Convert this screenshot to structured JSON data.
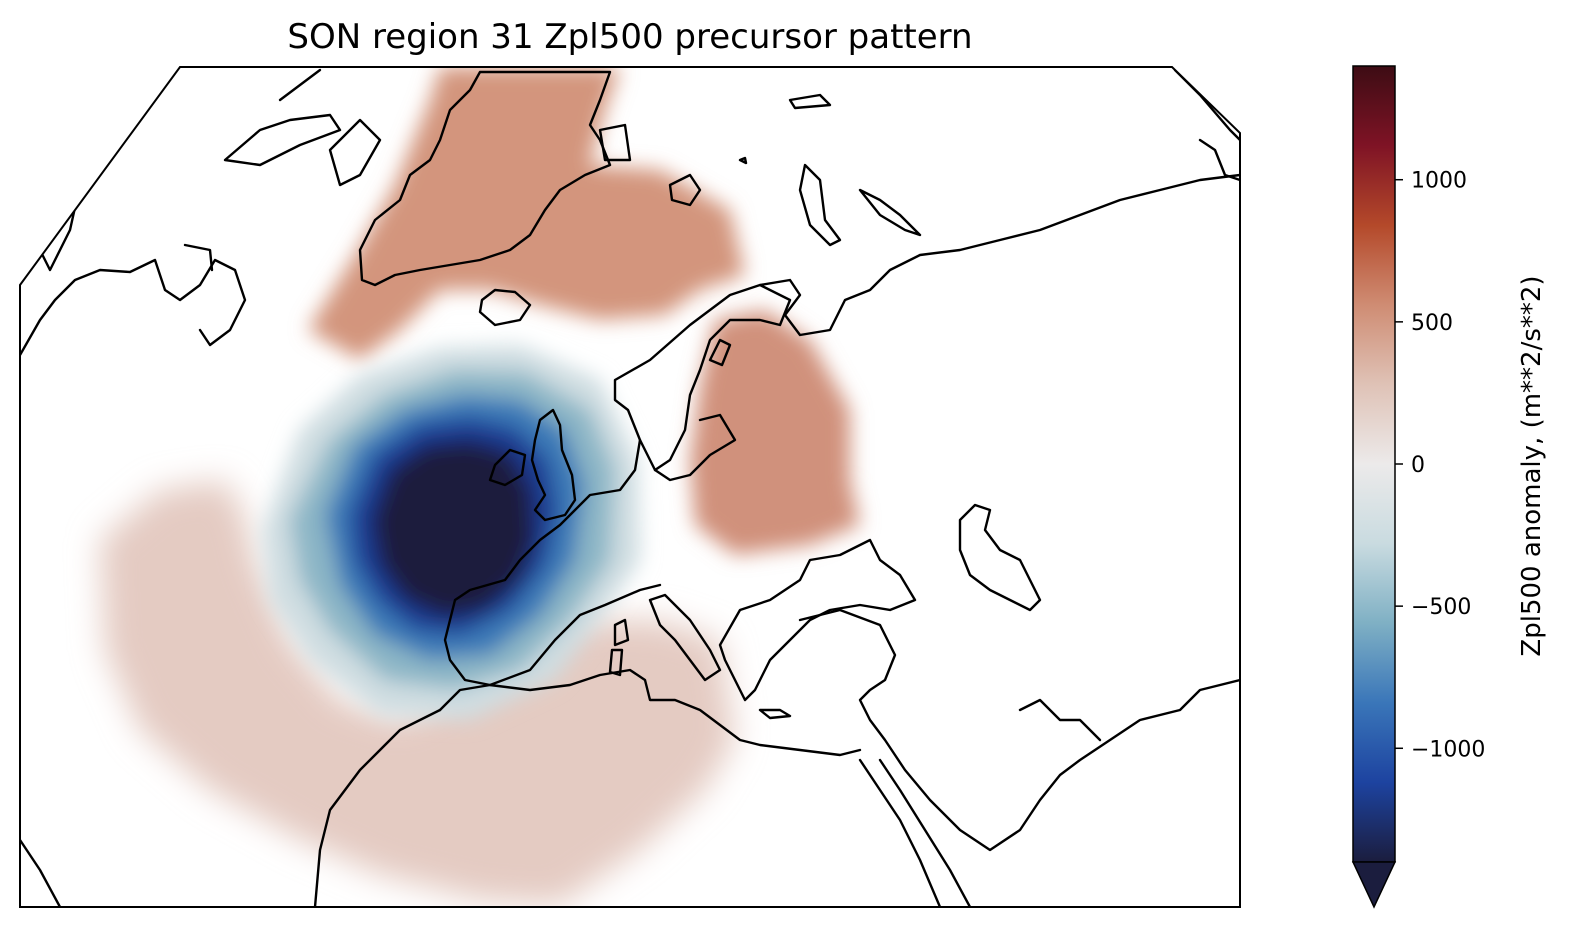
{
  "title": "SON region 31 Zpl500 precursor pattern",
  "colorbar": {
    "label": "Zpl500 anomaly, (m**2/s**2)",
    "ticks": [
      "1000",
      "500",
      "0",
      "−500",
      "−1000"
    ],
    "tick_values": [
      1000,
      500,
      0,
      -500,
      -1000
    ],
    "range": [
      -1400,
      1400
    ],
    "extend": "min",
    "colormap": [
      "#1b1d3e",
      "#1d43a0",
      "#3a76b9",
      "#7fb0c4",
      "#c9dbe0",
      "#eceaea",
      "#dfc2b6",
      "#cf8c73",
      "#b4492a",
      "#7f1325",
      "#3d0c14"
    ]
  },
  "chart_data": {
    "type": "heatmap",
    "title": "SON region 31 Zpl500 precursor pattern",
    "colorbar_label": "Zpl500 anomaly, (m**2/s**2)",
    "value_range": [
      -1400,
      1400
    ],
    "anomaly_centers": [
      {
        "region": "Atlantic west of British Isles and Iberia",
        "sign": "negative",
        "peak_value": -1400
      },
      {
        "region": "Greenland and Norwegian Sea",
        "sign": "positive",
        "peak_value": 450
      },
      {
        "region": "Scandinavia and western Russia",
        "sign": "positive",
        "peak_value": 450
      },
      {
        "region": "Subtropical Atlantic and North Africa",
        "sign": "positive",
        "peak_value": 200
      }
    ]
  }
}
